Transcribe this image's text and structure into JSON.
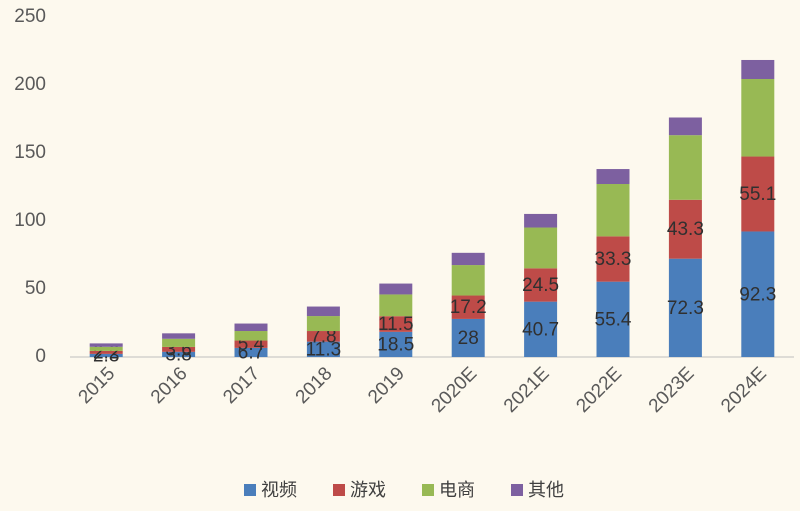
{
  "chart_data": {
    "type": "stacked_bar",
    "categories": [
      "2015",
      "2016",
      "2017",
      "2018",
      "2019",
      "2020E",
      "2021E",
      "2022E",
      "2023E",
      "2024E"
    ],
    "series": [
      {
        "name": "视频",
        "color": "#4a7ebb",
        "data_labels": true,
        "values": [
          2.3,
          3.8,
          6.7,
          11.3,
          18.5,
          28,
          40.7,
          55.4,
          72.3,
          92.3
        ]
      },
      {
        "name": "游戏",
        "color": "#be4b48",
        "data_labels": true,
        "values": [
          2.2,
          3.6,
          5.4,
          7.8,
          11.5,
          17.2,
          24.5,
          33.3,
          43.3,
          55.1
        ]
      },
      {
        "name": "电商",
        "color": "#98b954",
        "data_labels": false,
        "values": [
          3,
          6,
          7,
          11,
          16,
          22.4,
          30,
          38.5,
          47.5,
          57
        ]
      },
      {
        "name": "其他",
        "color": "#7d60a0",
        "data_labels": false,
        "values": [
          2.5,
          4,
          5.5,
          7,
          8,
          9,
          10,
          11,
          13,
          14
        ]
      }
    ],
    "ylim": [
      0,
      250
    ],
    "yticks": [
      0,
      50,
      100,
      150,
      200,
      250
    ],
    "grid": false,
    "legend": "bottom"
  }
}
